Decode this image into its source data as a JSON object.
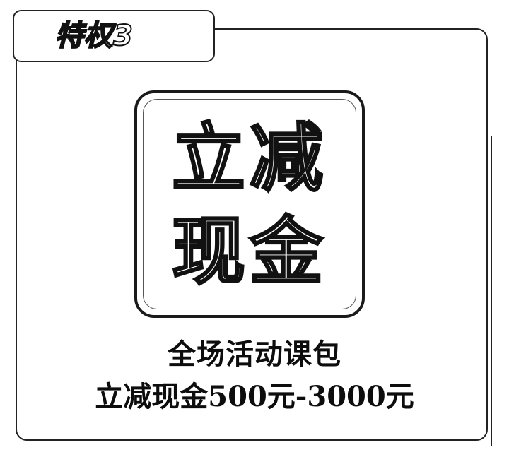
{
  "tag": {
    "label": "特权3"
  },
  "badge": {
    "line1": "立减",
    "line2": "现金"
  },
  "caption": {
    "line1": "全场活动课包",
    "line2": "立减现金500元-3000元"
  }
}
